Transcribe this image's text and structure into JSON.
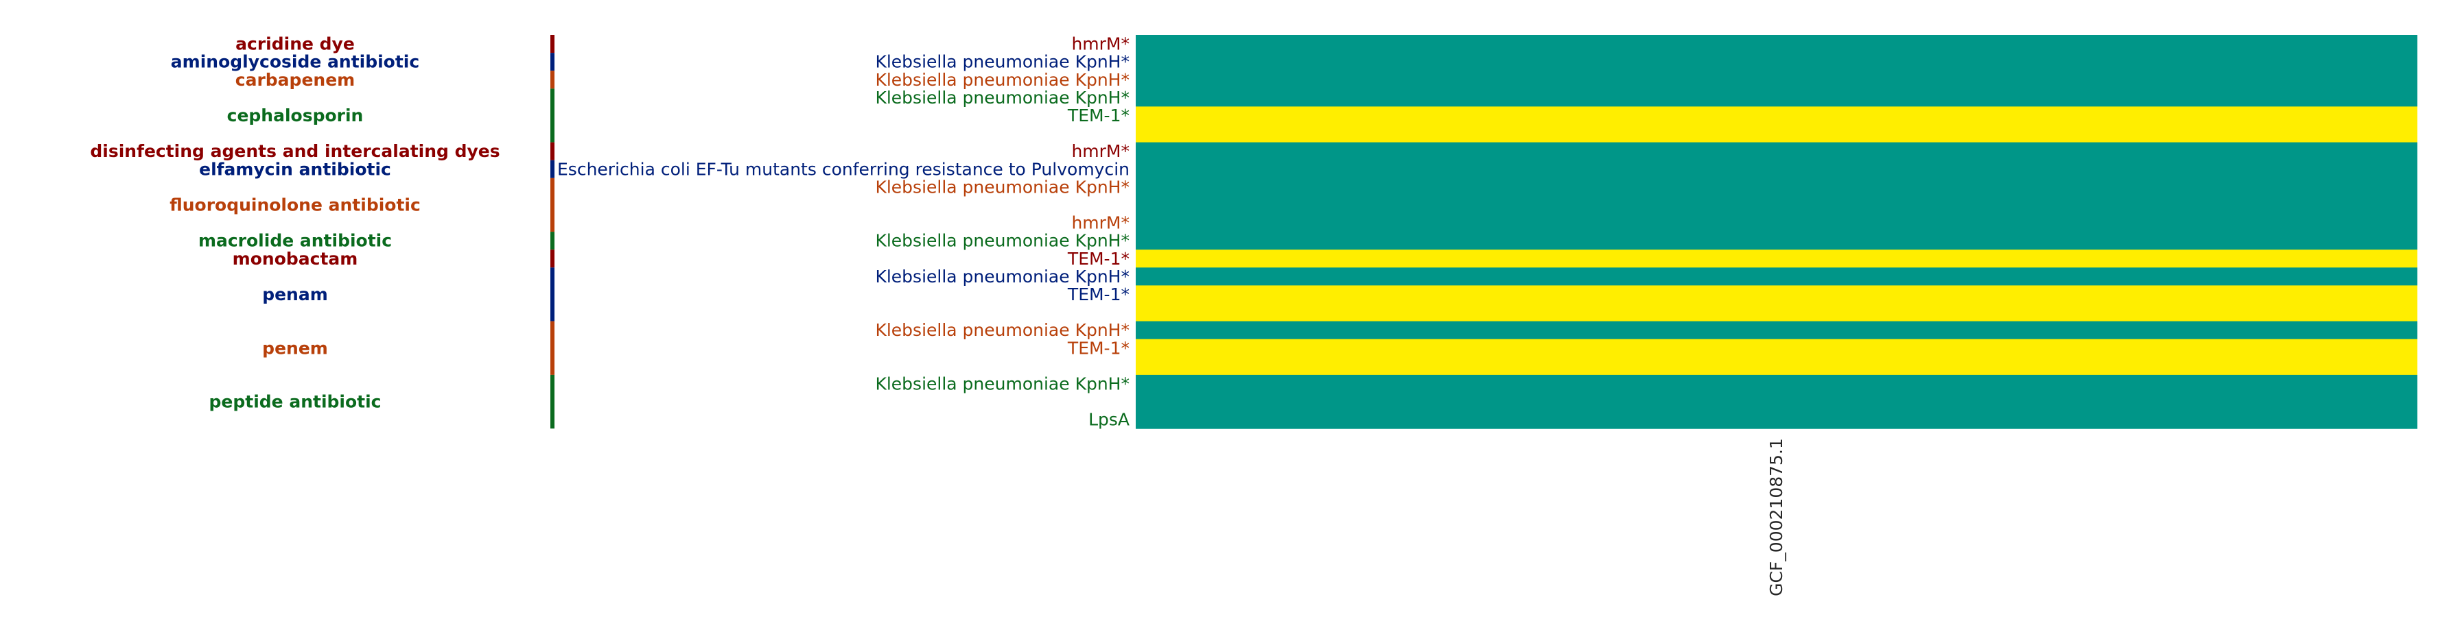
{
  "chart_data": {
    "type": "heatmap",
    "columns": [
      "GCF_000210875.1"
    ],
    "colors": {
      "present": "#009688",
      "absent": "#ffee00",
      "category_palette": [
        "#8b0000",
        "#001f7a",
        "#b8400a",
        "#0b6b1e"
      ]
    },
    "categories": [
      {
        "name": "acridine dye",
        "rows": [
          0,
          0
        ],
        "color": "#8b0000"
      },
      {
        "name": "aminoglycoside antibiotic",
        "rows": [
          1,
          1
        ],
        "color": "#001f7a"
      },
      {
        "name": "carbapenem",
        "rows": [
          2,
          2
        ],
        "color": "#b8400a"
      },
      {
        "name": "cephalosporin",
        "rows": [
          3,
          5
        ],
        "color": "#0b6b1e"
      },
      {
        "name": "disinfecting agents and intercalating dyes",
        "rows": [
          6,
          6
        ],
        "color": "#8b0000"
      },
      {
        "name": "elfamycin antibiotic",
        "rows": [
          7,
          7
        ],
        "color": "#001f7a"
      },
      {
        "name": "fluoroquinolone antibiotic",
        "rows": [
          8,
          10
        ],
        "color": "#b8400a"
      },
      {
        "name": "macrolide antibiotic",
        "rows": [
          11,
          11
        ],
        "color": "#0b6b1e"
      },
      {
        "name": "monobactam",
        "rows": [
          12,
          12
        ],
        "color": "#8b0000"
      },
      {
        "name": "penam",
        "rows": [
          13,
          15
        ],
        "color": "#001f7a"
      },
      {
        "name": "penem",
        "rows": [
          16,
          18
        ],
        "color": "#b8400a"
      },
      {
        "name": "peptide antibiotic",
        "rows": [
          19,
          21
        ],
        "color": "#0b6b1e"
      }
    ],
    "rows": [
      {
        "label": "hmrM*",
        "color": "#8b0000",
        "values": [
          "present"
        ]
      },
      {
        "label": "Klebsiella pneumoniae KpnH*",
        "color": "#001f7a",
        "values": [
          "present"
        ]
      },
      {
        "label": "Klebsiella pneumoniae KpnH*",
        "color": "#b8400a",
        "values": [
          "present"
        ]
      },
      {
        "label": "Klebsiella pneumoniae KpnH*",
        "color": "#0b6b1e",
        "values": [
          "present"
        ]
      },
      {
        "label": "TEM-1*",
        "color": "#0b6b1e",
        "values": [
          "absent"
        ]
      },
      {
        "label": "",
        "color": "#0b6b1e",
        "values": [
          "absent"
        ]
      },
      {
        "label": "hmrM*",
        "color": "#8b0000",
        "values": [
          "present"
        ]
      },
      {
        "label": "Escherichia coli EF-Tu mutants conferring resistance to Pulvomycin",
        "color": "#001f7a",
        "values": [
          "present"
        ]
      },
      {
        "label": "Klebsiella pneumoniae KpnH*",
        "color": "#b8400a",
        "values": [
          "present"
        ]
      },
      {
        "label": "",
        "color": "#b8400a",
        "values": [
          "present"
        ]
      },
      {
        "label": "hmrM*",
        "color": "#b8400a",
        "values": [
          "present"
        ]
      },
      {
        "label": "Klebsiella pneumoniae KpnH*",
        "color": "#0b6b1e",
        "values": [
          "present"
        ]
      },
      {
        "label": "TEM-1*",
        "color": "#8b0000",
        "values": [
          "absent"
        ]
      },
      {
        "label": "Klebsiella pneumoniae KpnH*",
        "color": "#001f7a",
        "values": [
          "present"
        ]
      },
      {
        "label": "TEM-1*",
        "color": "#001f7a",
        "values": [
          "absent"
        ]
      },
      {
        "label": "",
        "color": "#001f7a",
        "values": [
          "absent"
        ]
      },
      {
        "label": "Klebsiella pneumoniae KpnH*",
        "color": "#b8400a",
        "values": [
          "present"
        ]
      },
      {
        "label": "TEM-1*",
        "color": "#b8400a",
        "values": [
          "absent"
        ]
      },
      {
        "label": "",
        "color": "#b8400a",
        "values": [
          "absent"
        ]
      },
      {
        "label": "Klebsiella pneumoniae KpnH*",
        "color": "#0b6b1e",
        "values": [
          "present"
        ]
      },
      {
        "label": "",
        "color": "#0b6b1e",
        "values": [
          "present"
        ]
      },
      {
        "label": "LpsA",
        "color": "#0b6b1e",
        "values": [
          "present"
        ]
      }
    ]
  }
}
